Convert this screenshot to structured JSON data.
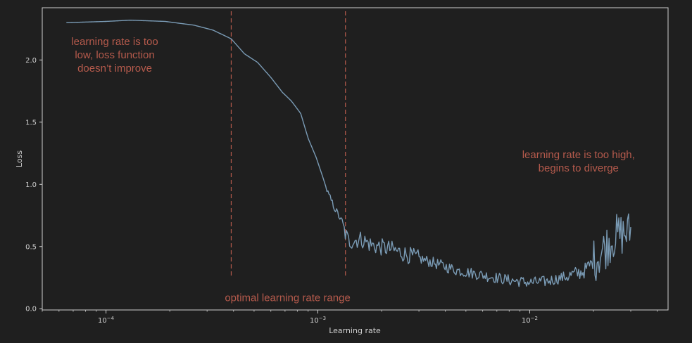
{
  "chart_data": {
    "type": "line",
    "xscale": "log",
    "xlabel": "Learning rate",
    "ylabel": "Loss",
    "xlim": [
      5e-05,
      0.045
    ],
    "ylim": [
      -0.01,
      2.42
    ],
    "y_ticks": [
      {
        "value": 0.0,
        "label": "0.0"
      },
      {
        "value": 0.5,
        "label": "0.5"
      },
      {
        "value": 1.0,
        "label": "1.0"
      },
      {
        "value": 1.5,
        "label": "1.5"
      },
      {
        "value": 2.0,
        "label": "2.0"
      }
    ],
    "x_ticks": [
      {
        "value": 0.0001,
        "base": "10",
        "exp": "−4"
      },
      {
        "value": 0.001,
        "base": "10",
        "exp": "−3"
      },
      {
        "value": 0.01,
        "base": "10",
        "exp": "−2"
      }
    ],
    "optimal_range": [
      0.00039,
      0.00135
    ],
    "series": [
      {
        "name": "loss",
        "color": "#7a9bb5",
        "x_start": 6.5e-05,
        "x_end": 0.03,
        "anchors": [
          [
            6.5e-05,
            2.3
          ],
          [
            0.0001,
            2.31
          ],
          [
            0.00013,
            2.32
          ],
          [
            0.00019,
            2.31
          ],
          [
            0.00026,
            2.28
          ],
          [
            0.00032,
            2.24
          ],
          [
            0.00039,
            2.17
          ],
          [
            0.00045,
            2.05
          ],
          [
            0.00052,
            1.98
          ],
          [
            0.0006,
            1.86
          ],
          [
            0.00068,
            1.74
          ],
          [
            0.00075,
            1.67
          ],
          [
            0.00083,
            1.57
          ],
          [
            0.0009,
            1.37
          ],
          [
            0.00098,
            1.22
          ],
          [
            0.00105,
            1.07
          ],
          [
            0.00112,
            0.92
          ],
          [
            0.0012,
            0.81
          ],
          [
            0.00128,
            0.72
          ],
          [
            0.00135,
            0.6
          ],
          [
            0.0014,
            0.54
          ],
          [
            0.0016,
            0.56
          ],
          [
            0.0018,
            0.51
          ],
          [
            0.0022,
            0.48
          ],
          [
            0.0028,
            0.42
          ],
          [
            0.0035,
            0.37
          ],
          [
            0.0045,
            0.31
          ],
          [
            0.006,
            0.27
          ],
          [
            0.008,
            0.23
          ],
          [
            0.01,
            0.21
          ],
          [
            0.012,
            0.22
          ],
          [
            0.015,
            0.26
          ],
          [
            0.018,
            0.3
          ],
          [
            0.021,
            0.42
          ],
          [
            0.025,
            0.58
          ],
          [
            0.03,
            0.62
          ]
        ]
      }
    ],
    "annotations": [
      {
        "lines": [
          "learning rate is too",
          "low, loss function",
          "doesn’t improve"
        ],
        "x": 0.00011,
        "y": 2.12
      },
      {
        "lines": [
          "optimal learning rate range"
        ],
        "x": 0.00072,
        "y": 0.06
      },
      {
        "lines": [
          "learning rate is too high,",
          "begins to diverge"
        ],
        "x": 0.017,
        "y": 1.21
      }
    ],
    "colors": {
      "background": "#1f1f1f",
      "axes": "#cfcfcf",
      "line": "#7a9bb5",
      "annotation": "#b55a4c",
      "vline": "#b55a4c"
    }
  }
}
